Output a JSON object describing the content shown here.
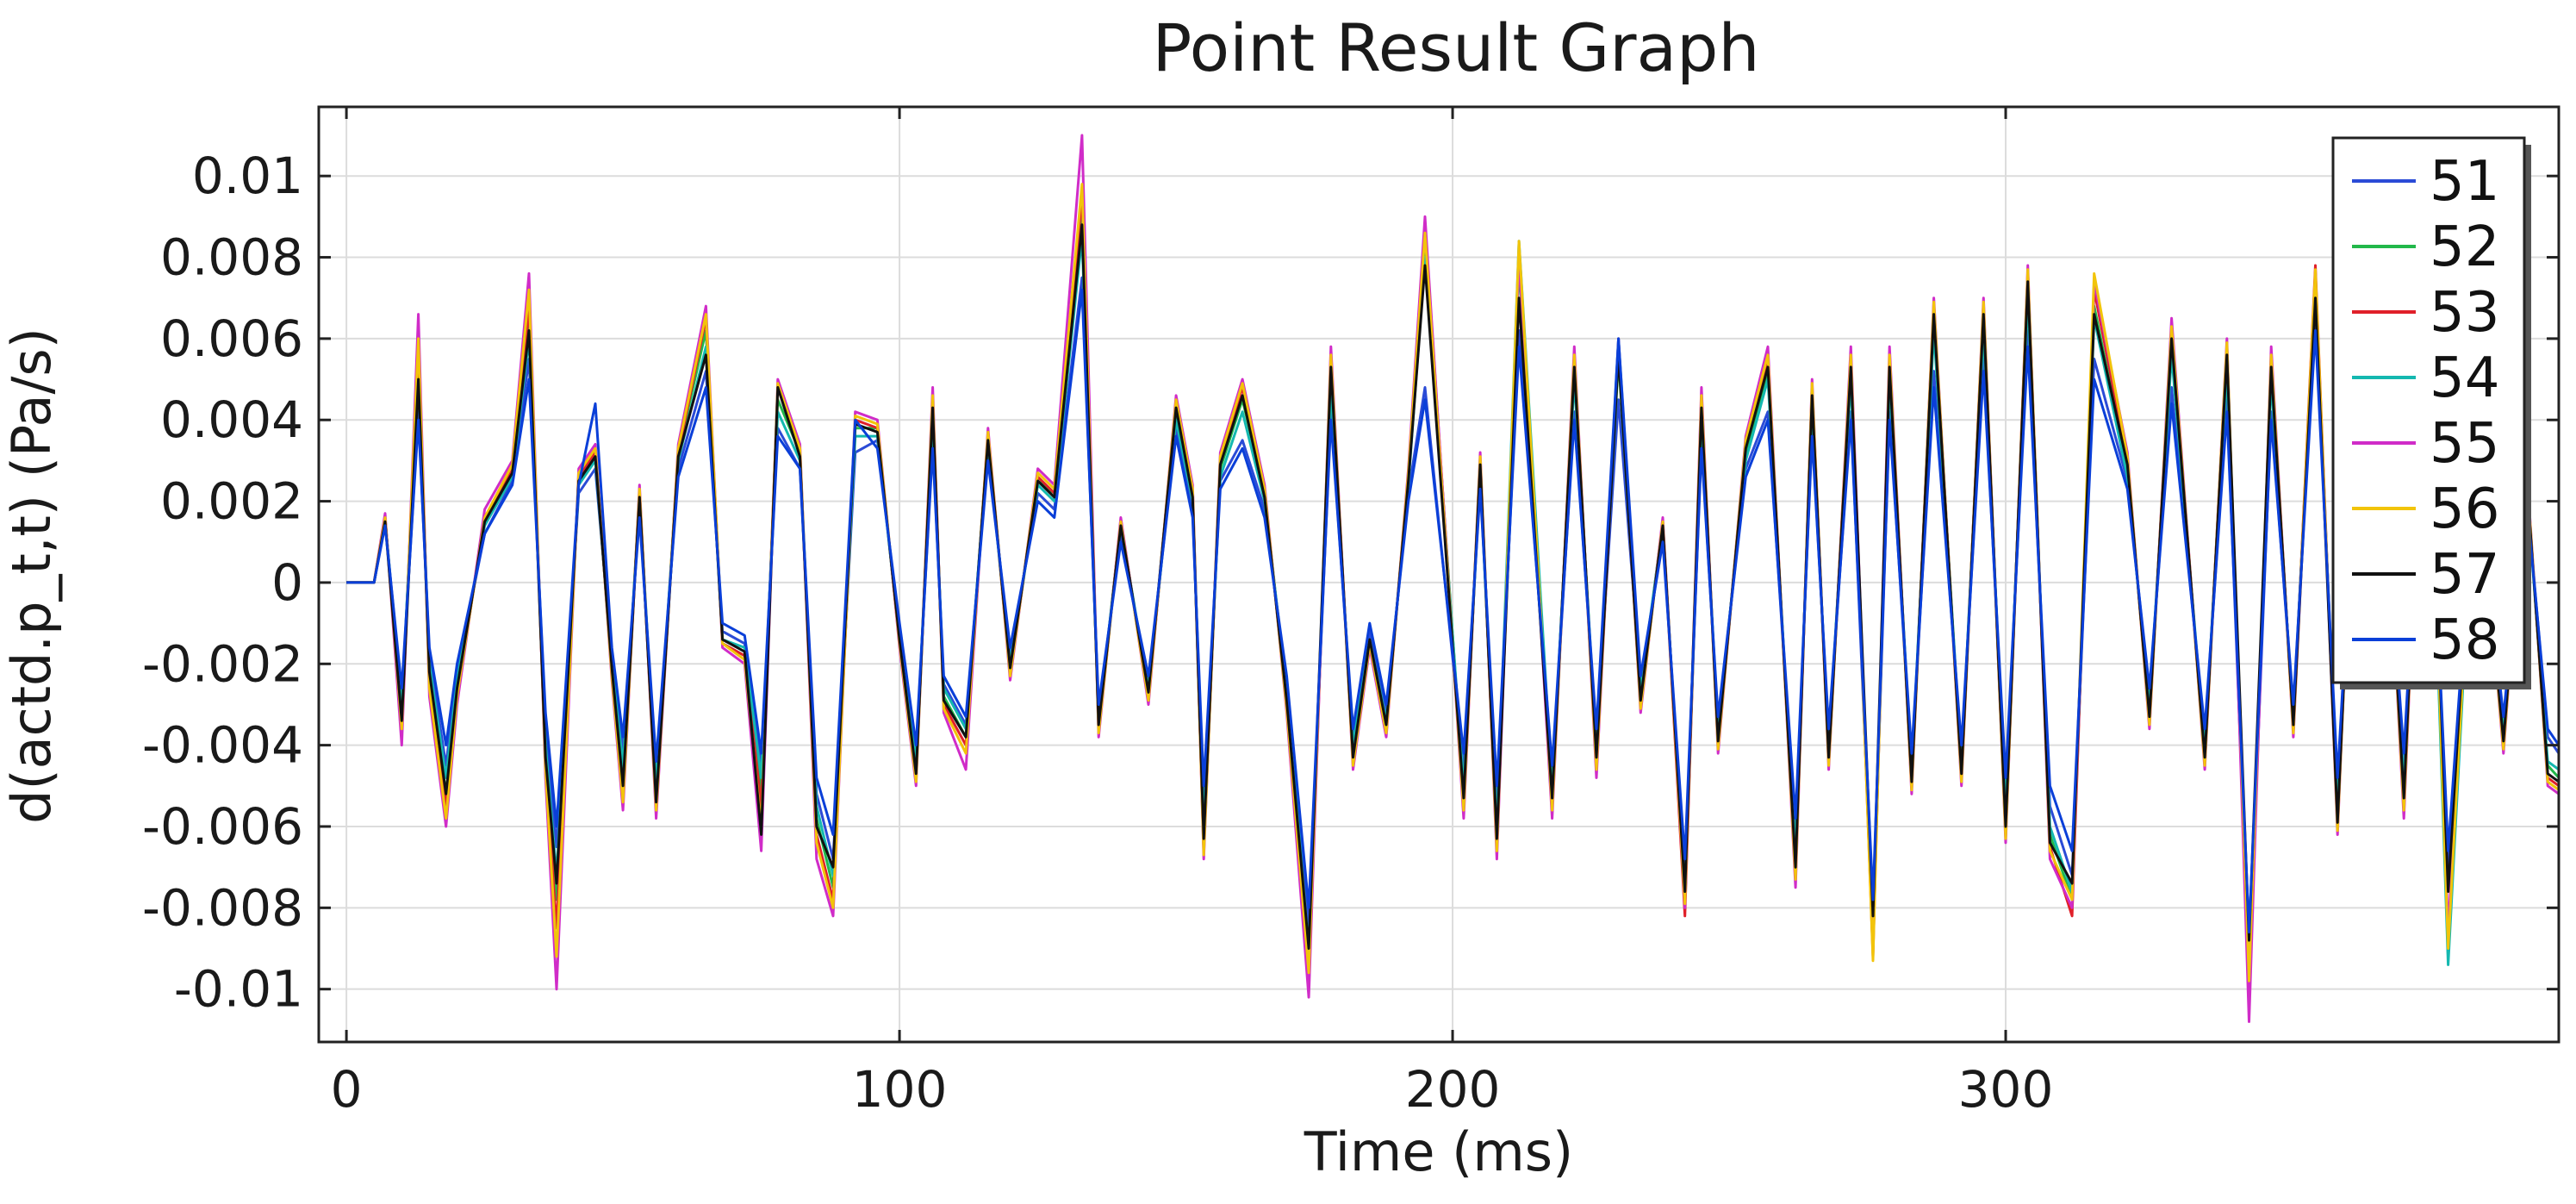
{
  "chart_data": {
    "type": "line",
    "title": "Point Result Graph",
    "xlabel": "Time (ms)",
    "ylabel": "d(actd.p_t,t) (Pa/s)",
    "xlim": [
      -5,
      400
    ],
    "ylim": [
      -0.0113,
      0.0117
    ],
    "x_ticks": [
      0,
      100,
      200,
      300
    ],
    "x_tick_labels": [
      "0",
      "100",
      "200",
      "300"
    ],
    "y_ticks": [
      0.01,
      0.008,
      0.006,
      0.004,
      0.002,
      0,
      -0.002,
      -0.004,
      -0.006,
      -0.008,
      -0.01
    ],
    "y_tick_labels": [
      "0.01",
      "0.008",
      "0.006",
      "0.004",
      "0.002",
      "0",
      "-0.002",
      "-0.004",
      "-0.006",
      "-0.008",
      "-0.01"
    ],
    "grid": true,
    "legend_position": "top-right",
    "x": [
      0,
      5,
      7,
      10,
      13,
      15,
      18,
      20,
      25,
      30,
      33,
      36,
      38,
      42,
      45,
      48,
      50,
      53,
      56,
      60,
      65,
      68,
      72,
      75,
      78,
      82,
      85,
      88,
      92,
      96,
      100,
      103,
      106,
      108,
      112,
      116,
      120,
      125,
      128,
      133,
      136,
      140,
      145,
      150,
      153,
      155,
      158,
      162,
      166,
      170,
      174,
      178,
      182,
      185,
      188,
      192,
      195,
      202,
      205,
      208,
      212,
      218,
      222,
      226,
      230,
      234,
      238,
      242,
      245,
      248,
      253,
      257,
      262,
      265,
      268,
      272,
      276,
      279,
      283,
      287,
      292,
      296,
      300,
      304,
      308,
      312,
      316,
      322,
      326,
      330,
      336,
      340,
      344,
      348,
      352,
      356,
      360,
      364,
      368,
      372,
      376,
      380,
      385,
      390,
      394,
      398,
      400
    ],
    "series": [
      {
        "name": "51",
        "color": "#2b4bd6",
        "values": [
          0,
          0,
          0.0015,
          -0.0028,
          0.0042,
          -0.0018,
          -0.0045,
          -0.0022,
          0.0012,
          0.0025,
          0.0055,
          -0.0035,
          -0.0065,
          0.0022,
          0.0028,
          -0.0018,
          -0.0042,
          0.0018,
          -0.0048,
          0.0028,
          0.0052,
          -0.0012,
          -0.0015,
          -0.0045,
          0.0038,
          0.0028,
          -0.0052,
          -0.0068,
          0.0032,
          0.0035,
          -0.0012,
          -0.0042,
          0.0035,
          -0.0025,
          -0.0035,
          0.0032,
          -0.0018,
          0.0022,
          0.0018,
          0.0075,
          -0.0032,
          0.0012,
          -0.0025,
          0.0038,
          0.0018,
          -0.0055,
          0.0025,
          0.0035,
          0.0018,
          -0.0025,
          -0.0085,
          0.0042,
          -0.0038,
          -0.0012,
          -0.0032,
          0.0022,
          0.0048,
          -0.0045,
          0.0025,
          -0.0055,
          0.0062,
          -0.0048,
          0.0042,
          -0.0038,
          0.0045,
          -0.0025,
          0.0012,
          -0.0072,
          0.0035,
          -0.0035,
          0.0028,
          0.0042,
          -0.0062,
          0.0038,
          -0.0038,
          0.0042,
          -0.0085,
          0.0042,
          -0.0045,
          0.0052,
          -0.0042,
          0.0055,
          -0.0052,
          0.0062,
          -0.0055,
          -0.0072,
          0.0055,
          0.0025,
          -0.0028,
          0.0048,
          -0.0038,
          0.0045,
          -0.0095,
          0.0042,
          -0.0032,
          0.0068,
          -0.0052,
          0.0052,
          0.0035,
          -0.0045,
          0.0058,
          -0.0072,
          0.0032,
          -0.0035,
          0.0025,
          -0.0038,
          -0.0042
        ]
      },
      {
        "name": "52",
        "color": "#22b84a",
        "values": [
          0,
          0,
          0.0016,
          -0.0032,
          0.0055,
          -0.0022,
          -0.0052,
          -0.0025,
          0.0015,
          0.0028,
          0.0065,
          -0.0042,
          -0.0078,
          0.0025,
          0.0032,
          -0.0022,
          -0.0048,
          0.0022,
          -0.0052,
          0.0032,
          0.0062,
          -0.0015,
          -0.0018,
          -0.0052,
          0.0045,
          0.0032,
          -0.0058,
          -0.0075,
          0.0038,
          0.0038,
          -0.0015,
          -0.0045,
          0.0042,
          -0.0028,
          -0.0038,
          0.0035,
          -0.0022,
          0.0025,
          0.0022,
          0.0092,
          -0.0035,
          0.0015,
          -0.0028,
          0.0042,
          0.0022,
          -0.0062,
          0.0028,
          0.0045,
          0.0022,
          -0.0028,
          -0.0092,
          0.0052,
          -0.0042,
          -0.0015,
          -0.0035,
          0.0025,
          0.0085,
          -0.0052,
          0.0028,
          -0.0062,
          0.0078,
          -0.0052,
          0.0052,
          -0.0042,
          0.0055,
          -0.0028,
          0.0015,
          -0.0078,
          0.0042,
          -0.0038,
          0.0032,
          0.0052,
          -0.0068,
          0.0045,
          -0.0042,
          0.0052,
          -0.0088,
          0.0052,
          -0.0048,
          0.0065,
          -0.0045,
          0.0065,
          -0.0058,
          0.0072,
          -0.0062,
          -0.0078,
          0.0068,
          0.0028,
          -0.0032,
          0.0058,
          -0.0042,
          0.0055,
          -0.0095,
          0.0052,
          -0.0035,
          0.0075,
          -0.0058,
          0.0062,
          0.0042,
          -0.0052,
          0.0068,
          -0.0092,
          0.0035,
          -0.0038,
          0.0028,
          -0.0045,
          -0.0048
        ]
      },
      {
        "name": "53",
        "color": "#e0202a",
        "values": [
          0,
          0,
          0.0016,
          -0.0035,
          0.0058,
          -0.0025,
          -0.0055,
          -0.0028,
          0.0016,
          0.0028,
          0.0068,
          -0.0045,
          -0.0085,
          0.0026,
          0.0032,
          -0.0022,
          -0.0052,
          0.0022,
          -0.0055,
          0.0032,
          0.0065,
          -0.0015,
          -0.0018,
          -0.0055,
          0.0048,
          0.0032,
          -0.0062,
          -0.0078,
          0.004,
          0.0038,
          -0.0015,
          -0.0048,
          0.0045,
          -0.003,
          -0.004,
          0.0036,
          -0.0022,
          0.0026,
          0.0022,
          0.0095,
          -0.0036,
          0.0015,
          -0.0028,
          0.0044,
          0.0022,
          -0.0066,
          0.003,
          0.0048,
          0.0022,
          -0.003,
          -0.0098,
          0.0055,
          -0.0044,
          -0.0015,
          -0.0036,
          0.0026,
          0.0088,
          -0.0055,
          0.003,
          -0.0065,
          0.0082,
          -0.0055,
          0.0055,
          -0.0045,
          0.0058,
          -0.003,
          0.0015,
          -0.0082,
          0.0045,
          -0.004,
          0.0034,
          0.0055,
          -0.0072,
          0.0048,
          -0.0044,
          0.0055,
          -0.0092,
          0.0055,
          -0.005,
          0.0068,
          -0.0048,
          0.0068,
          -0.0062,
          0.0076,
          -0.0065,
          -0.0082,
          0.0072,
          0.003,
          -0.0034,
          0.0062,
          -0.0044,
          0.0058,
          -0.01,
          0.0055,
          -0.0036,
          0.0078,
          -0.006,
          0.0065,
          0.0044,
          -0.0055,
          0.007,
          -0.0088,
          0.0036,
          -0.004,
          0.003,
          -0.0048,
          -0.005
        ]
      },
      {
        "name": "54",
        "color": "#14b8b0",
        "values": [
          0,
          0,
          0.0015,
          -0.003,
          0.005,
          -0.002,
          -0.0048,
          -0.0024,
          0.0014,
          0.0026,
          0.006,
          -0.004,
          -0.0072,
          0.0024,
          0.003,
          -0.002,
          -0.0045,
          0.002,
          -0.005,
          0.003,
          0.0058,
          -0.0014,
          -0.0016,
          -0.0048,
          0.0042,
          0.003,
          -0.0055,
          -0.0072,
          0.0036,
          0.0036,
          -0.0014,
          -0.0044,
          0.004,
          -0.0026,
          -0.0036,
          0.0034,
          -0.002,
          0.0024,
          0.002,
          0.0085,
          -0.0034,
          0.0014,
          -0.0026,
          0.004,
          0.002,
          -0.006,
          0.0026,
          0.0042,
          0.002,
          -0.0026,
          -0.009,
          0.0048,
          -0.004,
          -0.0014,
          -0.0034,
          0.0024,
          0.008,
          -0.005,
          0.0026,
          -0.006,
          0.0084,
          -0.005,
          0.005,
          -0.004,
          0.006,
          -0.0026,
          0.0014,
          -0.0076,
          0.004,
          -0.0036,
          0.003,
          0.005,
          -0.0066,
          0.0042,
          -0.004,
          0.005,
          -0.0086,
          0.005,
          -0.0046,
          0.0062,
          -0.0044,
          0.0062,
          -0.0056,
          0.007,
          -0.006,
          -0.0076,
          0.0065,
          0.0026,
          -0.003,
          0.0056,
          -0.004,
          0.0052,
          -0.0096,
          0.005,
          -0.0034,
          0.0072,
          -0.0056,
          0.006,
          0.004,
          -0.005,
          0.0066,
          -0.0094,
          0.0034,
          -0.0036,
          0.0026,
          -0.0044,
          -0.0046
        ]
      },
      {
        "name": "55",
        "color": "#d02cc8",
        "values": [
          0,
          0,
          0.0017,
          -0.004,
          0.0066,
          -0.0028,
          -0.006,
          -0.003,
          0.0018,
          0.003,
          0.0076,
          -0.0048,
          -0.01,
          0.0028,
          0.0034,
          -0.0024,
          -0.0056,
          0.0024,
          -0.0058,
          0.0034,
          0.0068,
          -0.0016,
          -0.002,
          -0.0066,
          0.005,
          0.0034,
          -0.0068,
          -0.0082,
          0.0042,
          0.004,
          -0.0016,
          -0.005,
          0.0048,
          -0.0032,
          -0.0046,
          0.0038,
          -0.0024,
          0.0028,
          0.0024,
          0.011,
          -0.0038,
          0.0016,
          -0.003,
          0.0046,
          0.0024,
          -0.0068,
          0.0032,
          0.005,
          0.0024,
          -0.0032,
          -0.0102,
          0.0058,
          -0.0046,
          -0.0016,
          -0.0038,
          0.0028,
          0.009,
          -0.0058,
          0.0032,
          -0.0068,
          0.008,
          -0.0058,
          0.0058,
          -0.0048,
          0.006,
          -0.0032,
          0.0016,
          -0.008,
          0.0048,
          -0.0042,
          0.0036,
          0.0058,
          -0.0075,
          0.005,
          -0.0046,
          0.0058,
          -0.009,
          0.0058,
          -0.0052,
          0.007,
          -0.005,
          0.007,
          -0.0064,
          0.0078,
          -0.0068,
          -0.008,
          0.0074,
          0.0032,
          -0.0036,
          0.0065,
          -0.0046,
          0.006,
          -0.0108,
          0.0058,
          -0.0038,
          0.0076,
          -0.0062,
          0.0068,
          0.0046,
          -0.0058,
          0.0072,
          -0.0086,
          0.0038,
          -0.0042,
          0.0032,
          -0.005,
          -0.0052
        ]
      },
      {
        "name": "56",
        "color": "#f2c40a",
        "values": [
          0,
          0,
          0.0016,
          -0.0036,
          0.006,
          -0.0026,
          -0.0058,
          -0.0028,
          0.0016,
          0.0029,
          0.0072,
          -0.0046,
          -0.0092,
          0.0027,
          0.0033,
          -0.0023,
          -0.0054,
          0.0023,
          -0.0056,
          0.0033,
          0.0066,
          -0.0015,
          -0.0019,
          -0.006,
          0.0049,
          0.0033,
          -0.0064,
          -0.008,
          0.0041,
          0.0039,
          -0.0015,
          -0.0049,
          0.0046,
          -0.0031,
          -0.0042,
          0.0037,
          -0.0023,
          0.0027,
          0.0023,
          0.0098,
          -0.0037,
          0.0015,
          -0.0029,
          0.0045,
          0.0023,
          -0.0067,
          0.0031,
          0.0049,
          0.0023,
          -0.0031,
          -0.0096,
          0.0056,
          -0.0045,
          -0.0015,
          -0.0037,
          0.0027,
          0.0086,
          -0.0056,
          0.0031,
          -0.0066,
          0.0084,
          -0.0056,
          0.0056,
          -0.0046,
          0.0059,
          -0.0031,
          0.0015,
          -0.0079,
          0.0046,
          -0.0041,
          0.0035,
          0.0056,
          -0.0073,
          0.0049,
          -0.0045,
          0.0056,
          -0.0093,
          0.0056,
          -0.0051,
          0.0069,
          -0.0049,
          0.0069,
          -0.0063,
          0.0077,
          -0.0066,
          -0.0078,
          0.0076,
          0.0031,
          -0.0035,
          0.0063,
          -0.0045,
          0.0059,
          -0.0098,
          0.0056,
          -0.0037,
          0.0077,
          -0.0061,
          0.0066,
          0.0045,
          -0.0056,
          0.0071,
          -0.009,
          0.0037,
          -0.0041,
          0.0031,
          -0.0049,
          -0.0051
        ]
      },
      {
        "name": "57",
        "color": "#111111",
        "values": [
          0,
          0,
          0.0015,
          -0.0034,
          0.005,
          -0.0022,
          -0.0052,
          -0.0026,
          0.0015,
          0.0027,
          0.0062,
          -0.0043,
          -0.0074,
          0.0025,
          0.0031,
          -0.0021,
          -0.005,
          0.0021,
          -0.0054,
          0.0031,
          0.0056,
          -0.0014,
          -0.0017,
          -0.0062,
          0.0048,
          0.0031,
          -0.006,
          -0.007,
          0.0039,
          0.0037,
          -0.0014,
          -0.0047,
          0.0043,
          -0.0029,
          -0.0038,
          0.0035,
          -0.0021,
          0.0025,
          0.0021,
          0.0088,
          -0.0035,
          0.0014,
          -0.0027,
          0.0043,
          0.0021,
          -0.0063,
          0.0029,
          0.0046,
          0.0021,
          -0.0029,
          -0.009,
          0.0053,
          -0.0043,
          -0.0014,
          -0.0035,
          0.0025,
          0.0078,
          -0.0053,
          0.0029,
          -0.0063,
          0.007,
          -0.0053,
          0.0053,
          -0.0043,
          0.0056,
          -0.0029,
          0.0014,
          -0.0076,
          0.0043,
          -0.0039,
          0.0033,
          0.0053,
          -0.007,
          0.0046,
          -0.0043,
          0.0053,
          -0.0082,
          0.0053,
          -0.0049,
          0.0066,
          -0.0047,
          0.0066,
          -0.006,
          0.0074,
          -0.0064,
          -0.0074,
          0.0066,
          0.0029,
          -0.0033,
          0.006,
          -0.0043,
          0.0056,
          -0.0088,
          0.0053,
          -0.0035,
          0.007,
          -0.0059,
          0.0063,
          0.0043,
          -0.0053,
          0.0068,
          -0.0076,
          0.0035,
          -0.0039,
          0.0029,
          -0.0047,
          -0.0049
        ]
      },
      {
        "name": "58",
        "color": "#0a3fd8",
        "values": [
          0,
          0,
          0.0014,
          -0.0026,
          0.004,
          -0.0016,
          -0.004,
          -0.002,
          0.0012,
          0.0024,
          0.005,
          -0.0032,
          -0.006,
          0.0024,
          0.0044,
          -0.0016,
          -0.0038,
          0.0016,
          -0.0044,
          0.0026,
          0.0048,
          -0.001,
          -0.0013,
          -0.0042,
          0.0036,
          0.0028,
          -0.0048,
          -0.0062,
          0.004,
          0.0033,
          -0.001,
          -0.004,
          0.0033,
          -0.0023,
          -0.0033,
          0.003,
          -0.0016,
          0.002,
          0.0016,
          0.0072,
          -0.003,
          0.001,
          -0.0023,
          0.0036,
          0.0016,
          -0.005,
          0.0023,
          0.0033,
          0.0016,
          -0.0023,
          -0.008,
          0.004,
          -0.0036,
          -0.001,
          -0.003,
          0.002,
          0.0045,
          -0.0042,
          0.0023,
          -0.005,
          0.0058,
          -0.0045,
          0.004,
          -0.0036,
          0.006,
          -0.0023,
          0.001,
          -0.0068,
          0.0033,
          -0.0033,
          0.0026,
          0.004,
          -0.0058,
          0.0036,
          -0.0036,
          0.004,
          -0.0078,
          0.004,
          -0.0042,
          0.0048,
          -0.004,
          0.0052,
          -0.0048,
          0.0058,
          -0.005,
          -0.0066,
          0.005,
          0.0023,
          -0.0026,
          0.0044,
          -0.0036,
          0.0042,
          -0.0086,
          0.004,
          -0.003,
          0.0062,
          -0.0048,
          0.0048,
          0.0033,
          -0.0042,
          0.0055,
          -0.0066,
          0.003,
          -0.0033,
          0.0023,
          -0.0036,
          -0.004
        ]
      }
    ]
  }
}
